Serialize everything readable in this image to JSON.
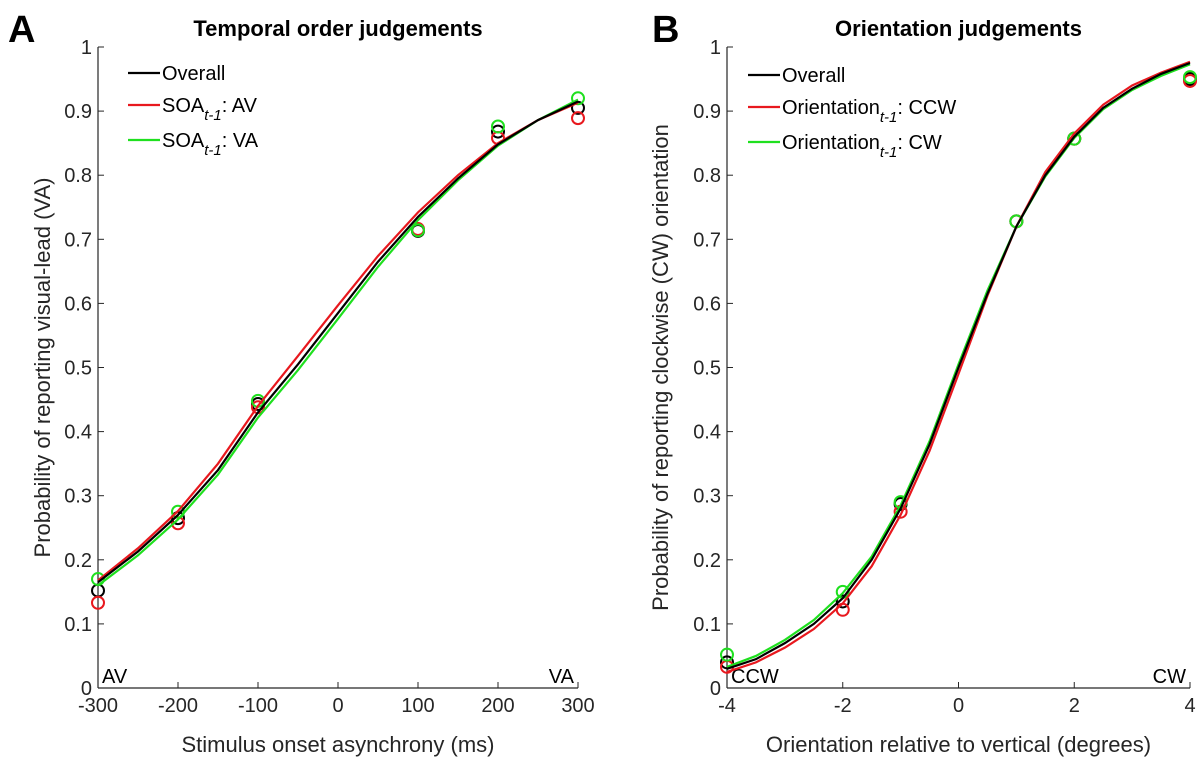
{
  "chart_data": [
    {
      "type": "line",
      "panel": "A",
      "title": "Temporal order judgements",
      "xlabel": "Stimulus onset asynchrony (ms)",
      "ylabel": "Probability of reporting visual-lead (VA)",
      "annotations": [
        "AV",
        "VA"
      ],
      "xlim": [
        -300,
        300
      ],
      "xticks": [
        -300,
        -200,
        -100,
        0,
        100,
        200,
        300
      ],
      "ylim": [
        0,
        1
      ],
      "yticks": [
        0,
        0.1,
        0.2,
        0.3,
        0.4,
        0.5,
        0.6,
        0.7,
        0.8,
        0.9,
        1
      ],
      "x": [
        -300,
        -250,
        -200,
        -150,
        -100,
        -50,
        0,
        50,
        100,
        150,
        200,
        250,
        300
      ],
      "series": [
        {
          "name": [
            "Overall"
          ],
          "color": "#000000",
          "values": [
            0.165,
            0.213,
            0.27,
            0.34,
            0.43,
            0.505,
            0.585,
            0.665,
            0.735,
            0.795,
            0.848,
            0.886,
            0.915
          ]
        },
        {
          "name": [
            "SOA",
            "t-1",
            ": AV"
          ],
          "color": "#e8181e",
          "values": [
            0.168,
            0.218,
            0.276,
            0.35,
            0.44,
            0.518,
            0.597,
            0.674,
            0.742,
            0.8,
            0.85,
            0.886,
            0.913
          ]
        },
        {
          "name": [
            "SOA",
            "t-1",
            ": VA"
          ],
          "color": "#1fe01f",
          "values": [
            0.16,
            0.207,
            0.263,
            0.333,
            0.422,
            0.496,
            0.576,
            0.657,
            0.73,
            0.792,
            0.846,
            0.886,
            0.918
          ]
        }
      ],
      "points": {
        "x": [
          -300,
          -200,
          -100,
          100,
          200,
          300
        ],
        "series": [
          {
            "color": "#000000",
            "values": [
              0.152,
              0.265,
              0.443,
              0.713,
              0.868,
              0.905
            ]
          },
          {
            "color": "#e8181e",
            "values": [
              0.133,
              0.257,
              0.438,
              0.716,
              0.858,
              0.889
            ]
          },
          {
            "color": "#1fe01f",
            "values": [
              0.17,
              0.275,
              0.448,
              0.714,
              0.876,
              0.92
            ]
          }
        ]
      }
    },
    {
      "type": "line",
      "panel": "B",
      "title": "Orientation judgements",
      "xlabel": "Orientation relative to vertical (degrees)",
      "ylabel": "Probability of reporting clockwise (CW) orientation",
      "annotations": [
        "CCW",
        "CW"
      ],
      "xlim": [
        -4,
        4
      ],
      "xticks": [
        -4,
        -2,
        0,
        2,
        4
      ],
      "ylim": [
        0,
        1
      ],
      "yticks": [
        0,
        0.1,
        0.2,
        0.3,
        0.4,
        0.5,
        0.6,
        0.7,
        0.8,
        0.9,
        1
      ],
      "x": [
        -4,
        -3.5,
        -3,
        -2.5,
        -2,
        -1.5,
        -1,
        -0.5,
        0,
        0.5,
        1,
        1.5,
        2,
        2.5,
        3,
        3.5,
        4
      ],
      "series": [
        {
          "name": [
            "Overall"
          ],
          "color": "#000000",
          "values": [
            0.03,
            0.045,
            0.07,
            0.1,
            0.14,
            0.2,
            0.28,
            0.38,
            0.5,
            0.615,
            0.72,
            0.8,
            0.86,
            0.905,
            0.935,
            0.958,
            0.975
          ]
        },
        {
          "name": [
            "Orientation",
            "t-1",
            ": CCW"
          ],
          "color": "#e8181e",
          "values": [
            0.025,
            0.04,
            0.063,
            0.092,
            0.132,
            0.19,
            0.27,
            0.37,
            0.49,
            0.612,
            0.72,
            0.805,
            0.865,
            0.91,
            0.94,
            0.96,
            0.977
          ]
        },
        {
          "name": [
            "Orientation",
            "t-1",
            ": CW"
          ],
          "color": "#1fe01f",
          "values": [
            0.033,
            0.05,
            0.075,
            0.106,
            0.148,
            0.205,
            0.285,
            0.385,
            0.505,
            0.62,
            0.72,
            0.798,
            0.858,
            0.903,
            0.933,
            0.955,
            0.973
          ]
        }
      ],
      "points": {
        "x": [
          -4,
          -2,
          -1,
          1,
          2,
          4
        ],
        "series": [
          {
            "color": "#000000",
            "values": [
              0.04,
              0.135,
              0.287,
              0.728,
              0.857,
              0.95
            ]
          },
          {
            "color": "#e8181e",
            "values": [
              0.033,
              0.122,
              0.275,
              0.728,
              0.857,
              0.947
            ]
          },
          {
            "color": "#1fe01f",
            "values": [
              0.052,
              0.15,
              0.29,
              0.728,
              0.857,
              0.953
            ]
          }
        ]
      }
    }
  ]
}
